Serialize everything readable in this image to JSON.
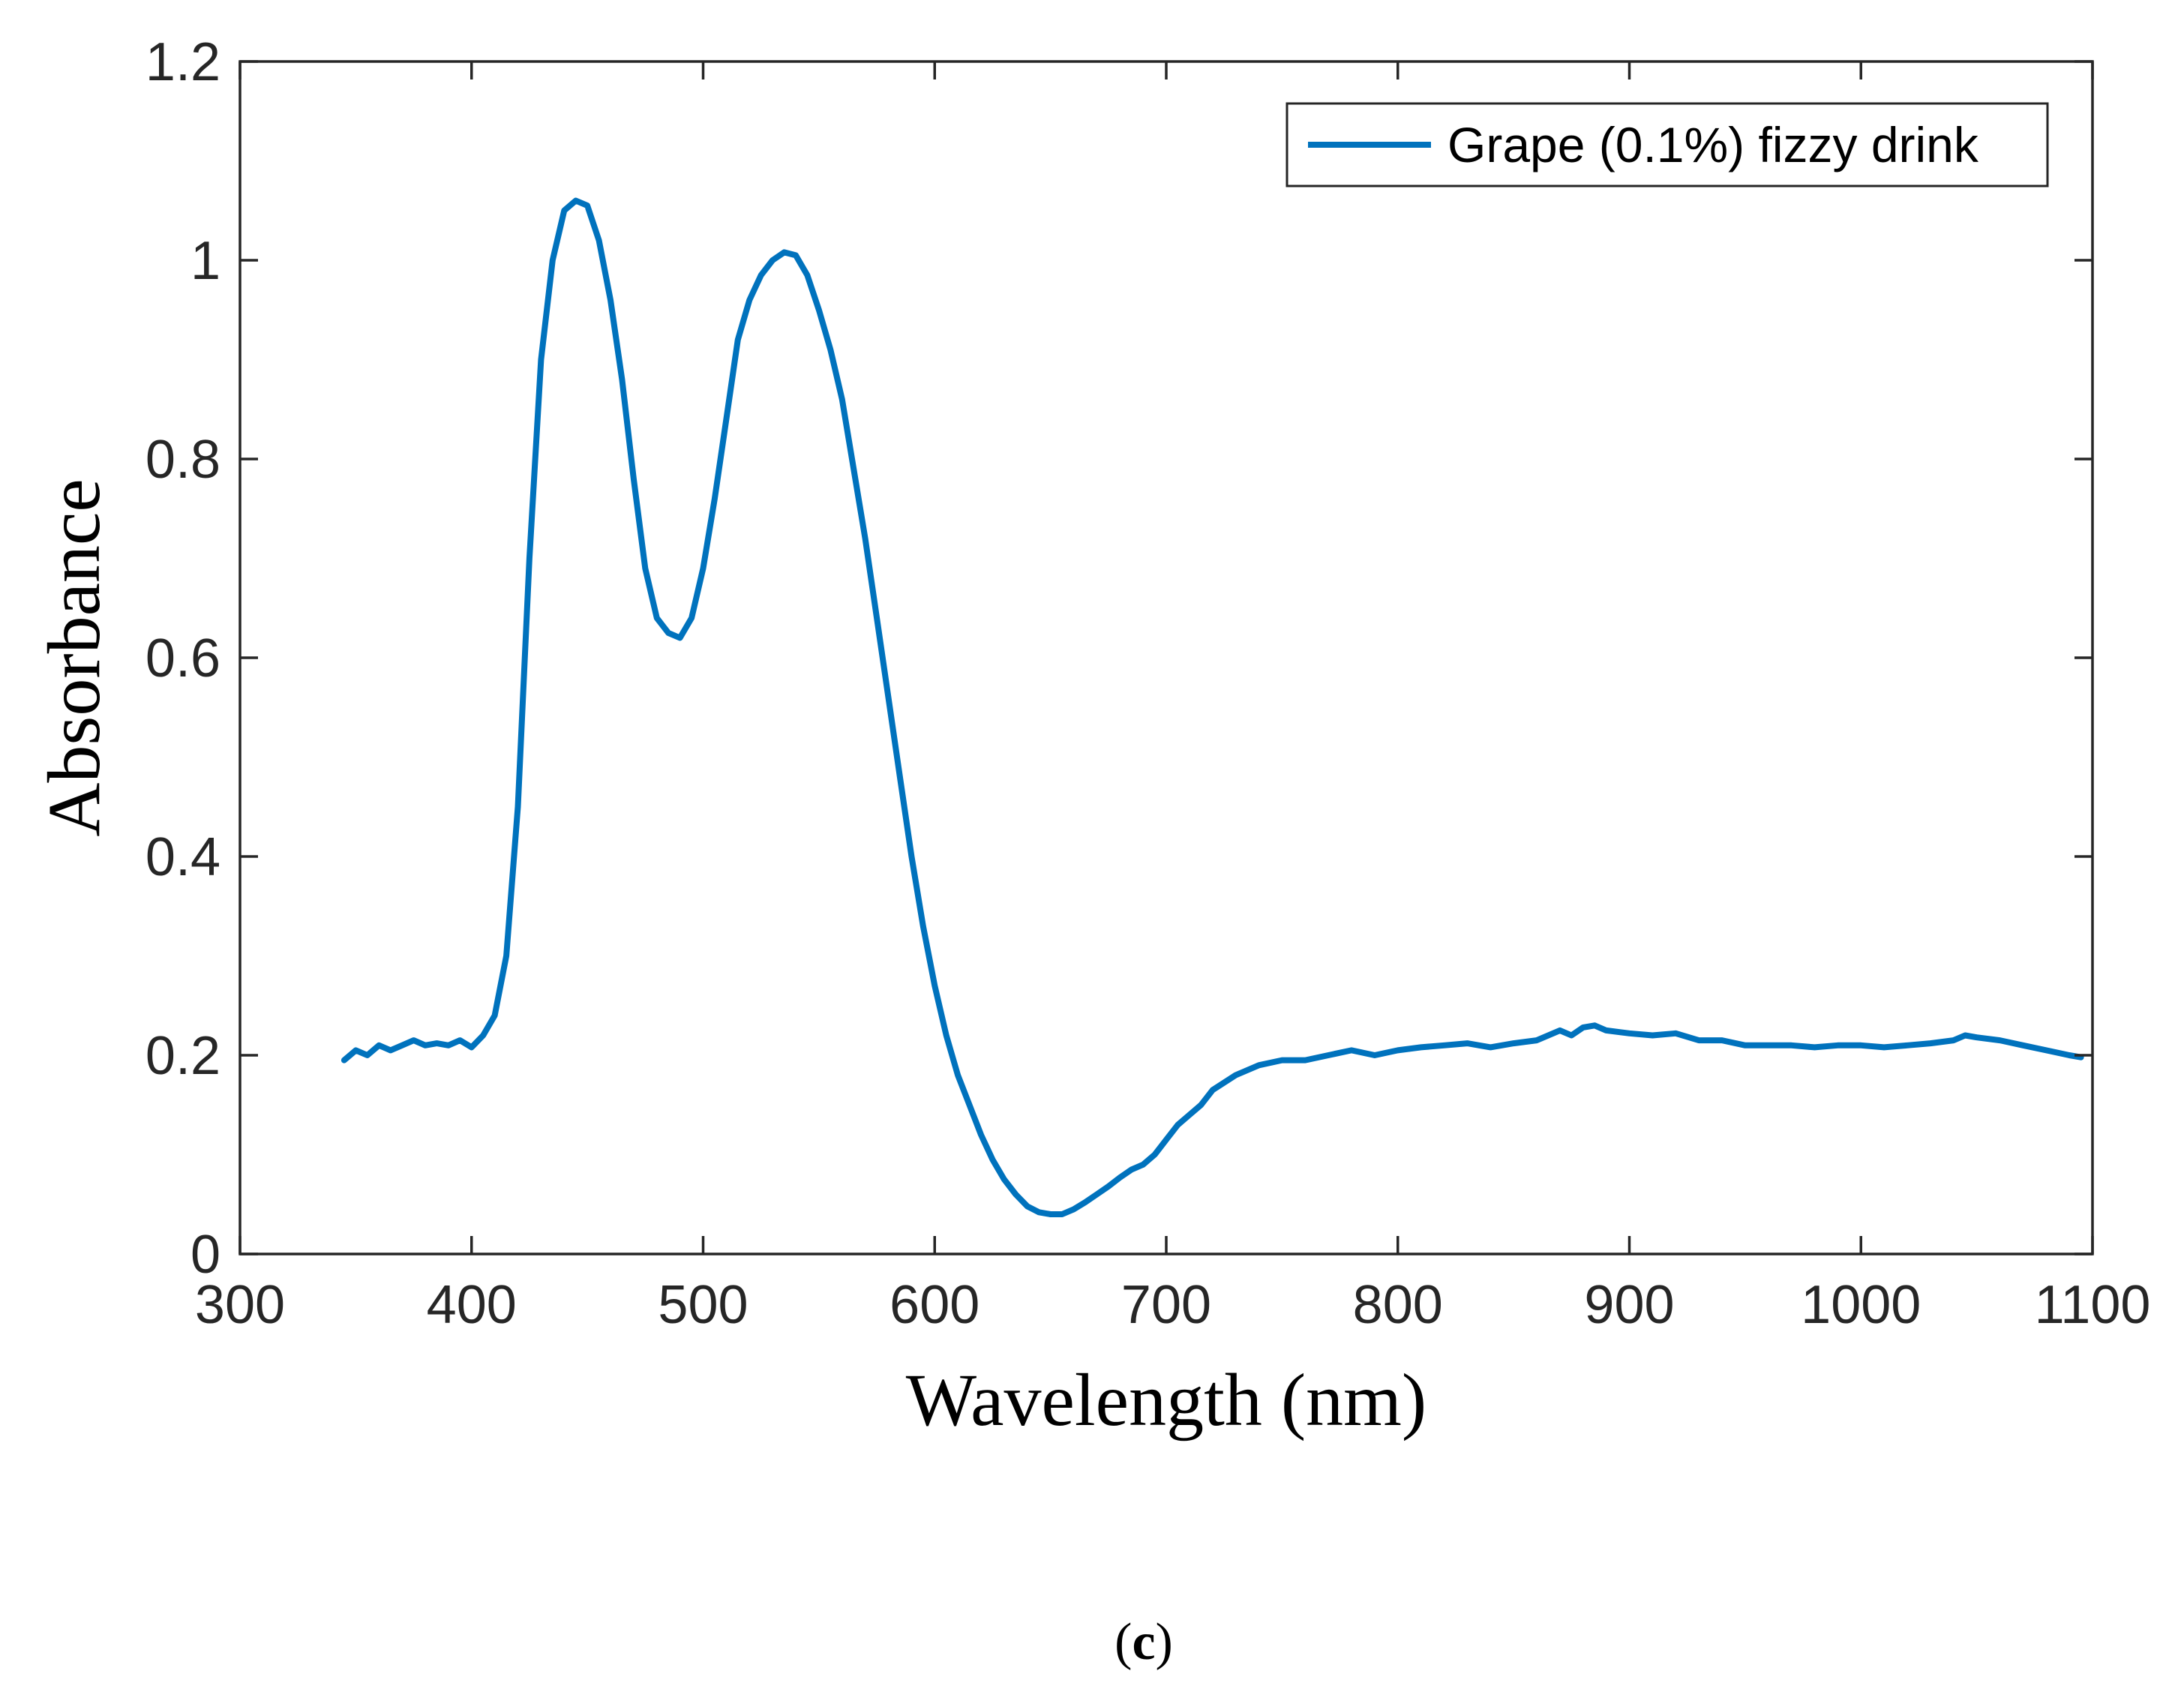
{
  "chart_data": {
    "type": "line",
    "title": "",
    "xlabel": "Wavelength (nm)",
    "ylabel": "Absorbance",
    "xlim": [
      300,
      1100
    ],
    "ylim": [
      0,
      1.2
    ],
    "xticks": [
      300,
      400,
      500,
      600,
      700,
      800,
      900,
      1000,
      1100
    ],
    "xtick_labels": [
      "300",
      "400",
      "500",
      "600",
      "700",
      "800",
      "900",
      "1000",
      "1100"
    ],
    "yticks": [
      0,
      0.2,
      0.4,
      0.6,
      0.8,
      1.0,
      1.2
    ],
    "ytick_labels": [
      "0",
      "0.2",
      "0.4",
      "0.6",
      "0.8",
      "1",
      "1.2"
    ],
    "grid": false,
    "legend_position": "top-right",
    "colors": {
      "series": "#0072BD",
      "axis": "#262626"
    },
    "series": [
      {
        "name": "Grape (0.1%) fizzy drink",
        "x": [
          345,
          350,
          355,
          360,
          365,
          370,
          375,
          380,
          385,
          390,
          395,
          400,
          405,
          410,
          415,
          420,
          425,
          430,
          435,
          440,
          445,
          450,
          455,
          460,
          465,
          470,
          475,
          480,
          485,
          490,
          495,
          500,
          505,
          510,
          515,
          520,
          525,
          530,
          535,
          540,
          545,
          550,
          555,
          560,
          565,
          570,
          575,
          580,
          585,
          590,
          595,
          600,
          605,
          610,
          615,
          620,
          625,
          630,
          635,
          640,
          645,
          650,
          655,
          660,
          665,
          670,
          675,
          680,
          685,
          690,
          695,
          700,
          705,
          710,
          715,
          720,
          730,
          740,
          750,
          760,
          770,
          780,
          790,
          800,
          810,
          820,
          830,
          840,
          850,
          860,
          870,
          875,
          880,
          885,
          890,
          900,
          910,
          920,
          930,
          940,
          950,
          960,
          970,
          980,
          990,
          1000,
          1010,
          1020,
          1030,
          1040,
          1045,
          1050,
          1060,
          1070,
          1080,
          1090,
          1095
        ],
        "y": [
          0.195,
          0.205,
          0.2,
          0.21,
          0.205,
          0.21,
          0.215,
          0.21,
          0.212,
          0.21,
          0.215,
          0.208,
          0.22,
          0.24,
          0.3,
          0.45,
          0.7,
          0.9,
          1.0,
          1.05,
          1.06,
          1.055,
          1.02,
          0.96,
          0.88,
          0.78,
          0.69,
          0.64,
          0.625,
          0.62,
          0.64,
          0.69,
          0.76,
          0.84,
          0.92,
          0.96,
          0.985,
          1.0,
          1.008,
          1.005,
          0.985,
          0.95,
          0.91,
          0.86,
          0.79,
          0.72,
          0.64,
          0.56,
          0.48,
          0.4,
          0.33,
          0.27,
          0.22,
          0.18,
          0.15,
          0.12,
          0.095,
          0.075,
          0.06,
          0.048,
          0.042,
          0.04,
          0.04,
          0.045,
          0.052,
          0.06,
          0.068,
          0.077,
          0.085,
          0.09,
          0.1,
          0.115,
          0.13,
          0.14,
          0.15,
          0.165,
          0.18,
          0.19,
          0.195,
          0.195,
          0.2,
          0.205,
          0.2,
          0.205,
          0.208,
          0.21,
          0.212,
          0.208,
          0.212,
          0.215,
          0.225,
          0.22,
          0.228,
          0.23,
          0.225,
          0.222,
          0.22,
          0.222,
          0.215,
          0.215,
          0.21,
          0.21,
          0.21,
          0.208,
          0.21,
          0.21,
          0.208,
          0.21,
          0.212,
          0.215,
          0.22,
          0.218,
          0.215,
          0.21,
          0.205,
          0.2,
          0.198
        ]
      }
    ],
    "panel_label": {
      "open": "(",
      "letter": "c",
      "close": ")"
    }
  }
}
